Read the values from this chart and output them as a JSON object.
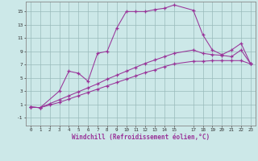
{
  "background_color": "#cce8e8",
  "line_color": "#993399",
  "grid_color": "#99bbbb",
  "xlabel": "Windchill (Refroidissement éolien,°C)",
  "xlim": [
    -0.5,
    23.5
  ],
  "ylim": [
    -2.2,
    16.5
  ],
  "xticks": [
    0,
    1,
    2,
    3,
    4,
    5,
    6,
    7,
    8,
    9,
    10,
    11,
    12,
    13,
    14,
    15,
    17,
    18,
    19,
    20,
    21,
    22,
    23
  ],
  "yticks": [
    -1,
    1,
    3,
    5,
    7,
    9,
    11,
    13,
    15
  ],
  "line1_x": [
    0,
    1,
    2,
    3,
    4,
    5,
    6,
    7,
    8,
    9,
    10,
    11,
    12,
    13,
    14,
    15,
    17,
    18,
    19,
    20,
    21,
    22,
    23
  ],
  "line1_y": [
    0.6,
    0.5,
    0.9,
    1.3,
    1.8,
    2.3,
    2.8,
    3.3,
    3.8,
    4.3,
    4.8,
    5.3,
    5.8,
    6.2,
    6.7,
    7.1,
    7.5,
    7.5,
    7.6,
    7.6,
    7.6,
    7.6,
    7.1
  ],
  "line2_x": [
    0,
    1,
    2,
    3,
    4,
    5,
    6,
    7,
    8,
    9,
    10,
    11,
    12,
    13,
    14,
    15,
    17,
    18,
    19,
    20,
    21,
    22,
    23
  ],
  "line2_y": [
    0.6,
    0.5,
    1.1,
    1.7,
    2.3,
    2.9,
    3.5,
    4.1,
    4.8,
    5.4,
    6.0,
    6.6,
    7.2,
    7.7,
    8.2,
    8.7,
    9.2,
    8.7,
    8.5,
    8.4,
    8.2,
    9.2,
    7.1
  ],
  "line3_x": [
    0,
    1,
    3,
    4,
    5,
    6,
    7,
    8,
    9,
    10,
    11,
    12,
    13,
    14,
    15,
    17,
    18,
    19,
    20,
    21,
    22,
    23
  ],
  "line3_y": [
    0.6,
    0.5,
    3.0,
    6.0,
    5.7,
    4.5,
    8.7,
    9.0,
    12.5,
    15.0,
    15.0,
    15.0,
    15.3,
    15.5,
    16.0,
    15.2,
    11.5,
    9.2,
    8.5,
    9.2,
    10.2,
    7.1
  ]
}
